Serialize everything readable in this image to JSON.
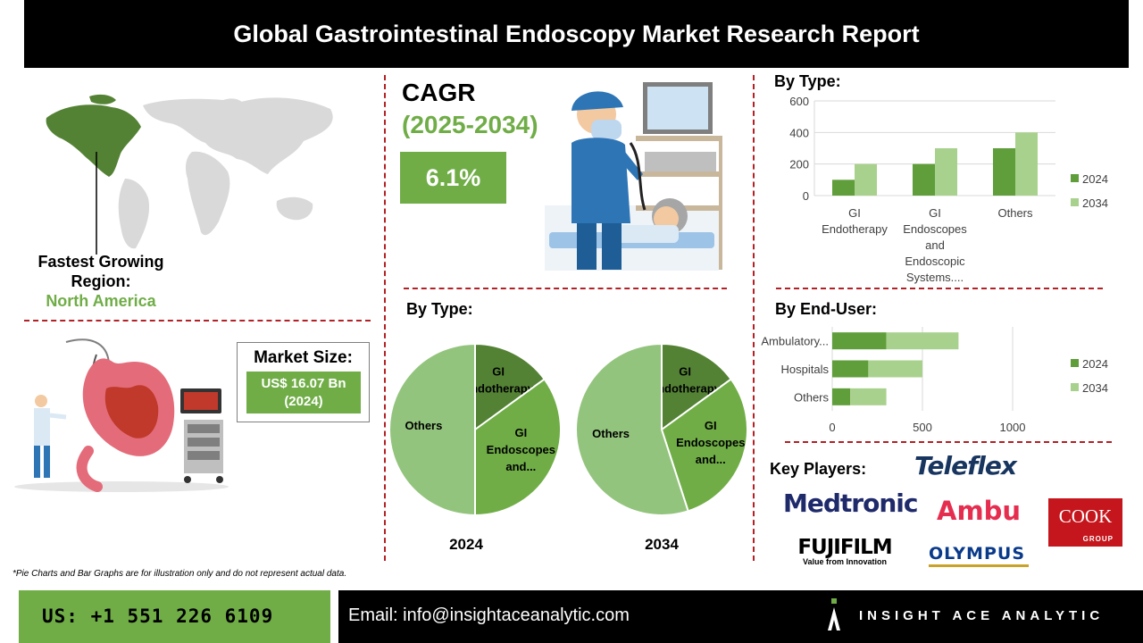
{
  "header": {
    "title": "Global Gastrointestinal Endoscopy Market Research Report"
  },
  "region": {
    "label_line1": "Fastest Growing",
    "label_line2": "Region:",
    "value": "North America"
  },
  "cagr": {
    "label": "CAGR",
    "period": "(2025-2034)",
    "value": "6.1%"
  },
  "market_size": {
    "label": "Market Size:",
    "value": "US$ 16.07 Bn",
    "year": "(2024)"
  },
  "sections": {
    "by_type_pie": "By Type:",
    "by_type_bar": "By Type:",
    "by_end_user": "By End-User:",
    "key_players": "Key Players:"
  },
  "chart_data": [
    {
      "type": "bar",
      "title": "By Type:",
      "categories": [
        "GI Endotherapy",
        "GI Endoscopes and Endoscopic Systems....",
        "Others"
      ],
      "category_lines": [
        [
          "GI",
          "Endotherapy"
        ],
        [
          "GI",
          "Endoscopes",
          "and",
          "Endoscopic",
          "Systems...."
        ],
        [
          "Others"
        ]
      ],
      "series": [
        {
          "name": "2024",
          "values": [
            100,
            200,
            300
          ]
        },
        {
          "name": "2034",
          "values": [
            200,
            300,
            400
          ]
        }
      ],
      "ylim": [
        0,
        600
      ],
      "yticks": [
        "0",
        "200",
        "400",
        "600"
      ],
      "colors": {
        "2024": "#5f9e3a",
        "2034": "#a9d18e"
      }
    },
    {
      "type": "bar",
      "orientation": "horizontal",
      "title": "By End-User:",
      "categories": [
        "Ambulatory...",
        "Hospitals",
        "Others"
      ],
      "series": [
        {
          "name": "2024",
          "values": [
            300,
            200,
            100
          ]
        },
        {
          "name": "2034",
          "values": [
            400,
            300,
            200
          ]
        }
      ],
      "xlim": [
        0,
        1000
      ],
      "xticks": [
        "0",
        "500",
        "1000"
      ],
      "colors": {
        "2024": "#5f9e3a",
        "2034": "#a9d18e"
      }
    },
    {
      "type": "pie",
      "title": "2024",
      "slices": [
        {
          "label": "GI Endotherapy",
          "lines": [
            "GI",
            "Endotherapy"
          ],
          "value": 15,
          "color": "#548235"
        },
        {
          "label": "GI Endoscopes and...",
          "lines": [
            "GI",
            "Endoscopes",
            "and..."
          ],
          "value": 35,
          "color": "#70ad47"
        },
        {
          "label": "Others",
          "lines": [
            "Others"
          ],
          "value": 50,
          "color": "#93c47d"
        }
      ]
    },
    {
      "type": "pie",
      "title": "2034",
      "slices": [
        {
          "label": "GI Endotherapy",
          "lines": [
            "GI",
            "Endotherapy"
          ],
          "value": 15,
          "color": "#548235"
        },
        {
          "label": "GI Endoscopes and...",
          "lines": [
            "GI",
            "Endoscopes",
            "and..."
          ],
          "value": 30,
          "color": "#70ad47"
        },
        {
          "label": "Others",
          "lines": [
            "Others"
          ],
          "value": 55,
          "color": "#93c47d"
        }
      ]
    }
  ],
  "players": {
    "teleflex": "Teleflex",
    "medtronic": "Medtronic",
    "ambu": "Ambu",
    "cook": "COOK",
    "cook_group": "GROUP",
    "fujifilm": "FUJIFILM",
    "fujifilm_tag": "Value from Innovation",
    "olympus": "OLYMPUS"
  },
  "disclaimer": "*Pie Charts and Bar Graphs are for illustration only and do not represent actual data.",
  "footer": {
    "phone": "US: +1 551 226 6109",
    "email": "Email: info@insightaceanalytic.com",
    "brand": "INSIGHT ACE ANALYTIC"
  },
  "colors": {
    "accent_green": "#70ad47",
    "divider_red": "#b32025"
  },
  "icons": [
    "world-map-icon",
    "doctor-endoscopy-icon",
    "stomach-endoscopy-icon",
    "insightace-logo-icon"
  ]
}
